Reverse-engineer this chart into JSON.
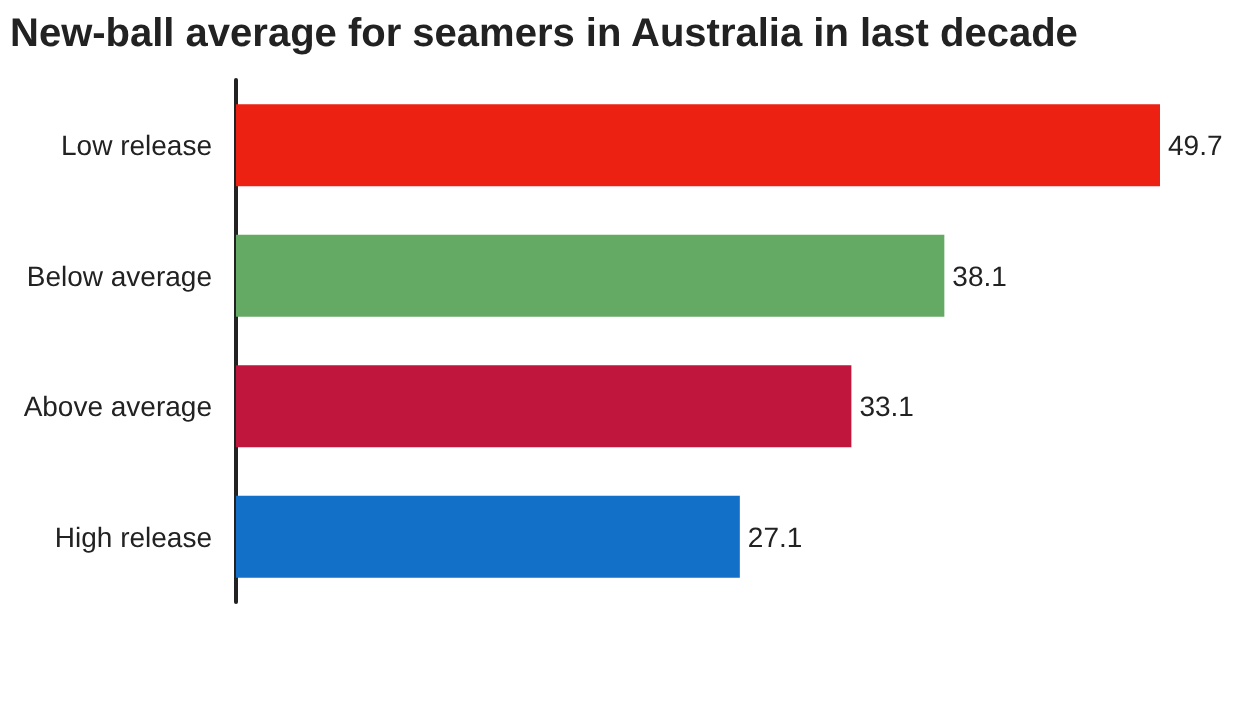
{
  "chart_data": {
    "type": "bar",
    "orientation": "horizontal",
    "title": "New-ball average for seamers in Australia in last decade",
    "categories": [
      "Low release",
      "Below average",
      "Above average",
      "High release"
    ],
    "values": [
      49.7,
      38.1,
      33.1,
      27.1
    ],
    "colors": [
      "#ed2112",
      "#64a964",
      "#c0153c",
      "#1270c9"
    ],
    "data_labels": true
  }
}
